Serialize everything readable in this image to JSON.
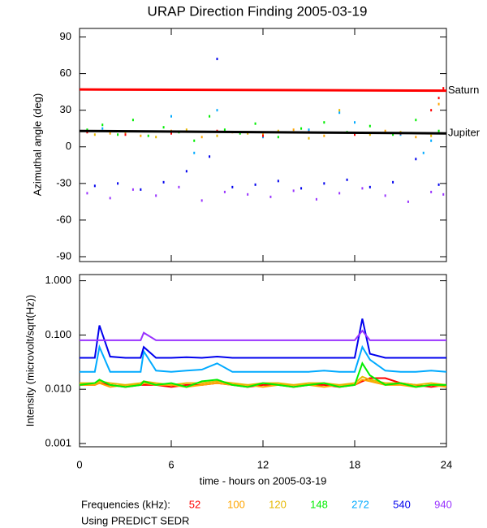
{
  "chart_data": [
    {
      "type": "scatter",
      "title": "URAP Direction Finding  2005-03-19",
      "ylabel": "Azimuthal angle (deg)",
      "xlim": [
        0,
        24
      ],
      "xticks": [
        0,
        6,
        12,
        18,
        24
      ],
      "ylim": [
        -94,
        97
      ],
      "yticks": [
        90,
        60,
        30,
        0,
        -30,
        -60,
        -90
      ],
      "reference_lines": [
        {
          "name": "Saturn",
          "color": "#ff0000",
          "x": [
            0,
            24
          ],
          "values": [
            47,
            46
          ]
        },
        {
          "name": "Jupiter",
          "color": "#000000",
          "x": [
            0,
            24
          ],
          "values": [
            13,
            11
          ]
        }
      ],
      "series": [
        {
          "color": "#9933ff",
          "x": [
            0.5,
            2,
            3.5,
            5,
            6.5,
            8,
            9.5,
            11,
            12.5,
            14,
            15.5,
            17,
            18.5,
            20,
            21.5,
            23,
            23.8
          ],
          "values": [
            -38,
            -42,
            -35,
            -40,
            -33,
            -44,
            -37,
            -39,
            -41,
            -36,
            -43,
            -38,
            -34,
            -40,
            -45,
            -37,
            -39
          ]
        },
        {
          "color": "#0000ee",
          "x": [
            1,
            2.5,
            4,
            5.5,
            7,
            8.5,
            9,
            10,
            11.5,
            13,
            14.5,
            16,
            17.5,
            19,
            20.5,
            22,
            23.5
          ],
          "values": [
            -32,
            -30,
            -35,
            -29,
            -20,
            -8,
            72,
            -33,
            -31,
            -28,
            -34,
            -30,
            -27,
            -33,
            -29,
            -10,
            -31
          ]
        },
        {
          "color": "#00aaff",
          "x": [
            1.5,
            3,
            6,
            7.5,
            9,
            12,
            15,
            17,
            18,
            21,
            22.5,
            23
          ],
          "values": [
            15,
            12,
            25,
            -5,
            30,
            8,
            14,
            28,
            20,
            10,
            -5,
            5
          ]
        },
        {
          "color": "#00ee00",
          "x": [
            0.5,
            1.5,
            2.5,
            3.5,
            4.5,
            5.5,
            6.5,
            7.5,
            8.5,
            9.5,
            10.5,
            11.5,
            13,
            14.5,
            16,
            17.5,
            19,
            20.5,
            22,
            23.5
          ],
          "values": [
            14,
            18,
            10,
            22,
            9,
            16,
            12,
            5,
            25,
            14,
            11,
            19,
            8,
            15,
            20,
            12,
            17,
            10,
            22,
            13
          ]
        },
        {
          "color": "#e6b800",
          "x": [
            1,
            3,
            5,
            7,
            9,
            11,
            13,
            15,
            17,
            19,
            21,
            23
          ],
          "values": [
            10,
            12,
            8,
            14,
            9,
            11,
            13,
            7,
            30,
            10,
            12,
            9
          ]
        },
        {
          "color": "#ffa500",
          "x": [
            2,
            4,
            6,
            8,
            10,
            12,
            14,
            16,
            18,
            20,
            22,
            23.5
          ],
          "values": [
            11,
            9,
            13,
            8,
            12,
            10,
            14,
            9,
            11,
            13,
            8,
            35
          ]
        },
        {
          "color": "#ff0000",
          "x": [
            0.5,
            3,
            6,
            9,
            12,
            15,
            18,
            21,
            23,
            23.5,
            23.8
          ],
          "values": [
            12,
            10,
            11,
            13,
            9,
            12,
            10,
            11,
            30,
            40,
            48
          ]
        }
      ]
    },
    {
      "type": "line",
      "ylabel": "Intensity (microvolt/sqrt(Hz))",
      "xlabel": "time - hours on 2005-03-19",
      "log_scale": true,
      "xlim": [
        0,
        24
      ],
      "xticks": [
        0,
        6,
        12,
        18,
        24
      ],
      "ylim": [
        0.00087,
        1.3
      ],
      "yticks": [
        {
          "value": 1,
          "label": "1.000"
        },
        {
          "value": 0.1,
          "label": "0.100"
        },
        {
          "value": 0.01,
          "label": "0.010"
        },
        {
          "value": 0.001,
          "label": "0.001"
        }
      ],
      "legend_title": "Frequencies (kHz):",
      "note": "Using PREDICT SEDR",
      "x": [
        0,
        1,
        1.3,
        2,
        3,
        4,
        4.2,
        5,
        6,
        7,
        8,
        9,
        10,
        11,
        12,
        13,
        14,
        15,
        16,
        17,
        18,
        18.5,
        19,
        20,
        21,
        22,
        23,
        24
      ],
      "series": [
        {
          "name": "52",
          "color": "#ff0000",
          "values": [
            0.012,
            0.012,
            0.013,
            0.012,
            0.011,
            0.012,
            0.012,
            0.012,
            0.011,
            0.012,
            0.012,
            0.013,
            0.012,
            0.011,
            0.012,
            0.012,
            0.011,
            0.012,
            0.012,
            0.011,
            0.012,
            0.014,
            0.016,
            0.016,
            0.013,
            0.012,
            0.011,
            0.012
          ]
        },
        {
          "name": "100",
          "color": "#ffa500",
          "values": [
            0.012,
            0.012,
            0.013,
            0.011,
            0.012,
            0.012,
            0.013,
            0.012,
            0.012,
            0.011,
            0.012,
            0.013,
            0.012,
            0.012,
            0.011,
            0.012,
            0.012,
            0.012,
            0.011,
            0.012,
            0.012,
            0.015,
            0.014,
            0.012,
            0.012,
            0.011,
            0.012,
            0.011
          ]
        },
        {
          "name": "120",
          "color": "#e6b800",
          "values": [
            0.013,
            0.013,
            0.014,
            0.013,
            0.012,
            0.013,
            0.014,
            0.013,
            0.012,
            0.013,
            0.013,
            0.014,
            0.013,
            0.012,
            0.013,
            0.013,
            0.012,
            0.013,
            0.013,
            0.012,
            0.013,
            0.017,
            0.015,
            0.013,
            0.013,
            0.012,
            0.013,
            0.012
          ]
        },
        {
          "name": "148",
          "color": "#00ee00",
          "values": [
            0.012,
            0.013,
            0.015,
            0.012,
            0.011,
            0.012,
            0.014,
            0.012,
            0.013,
            0.011,
            0.014,
            0.015,
            0.012,
            0.011,
            0.013,
            0.012,
            0.011,
            0.012,
            0.013,
            0.011,
            0.012,
            0.03,
            0.018,
            0.012,
            0.013,
            0.011,
            0.012,
            0.012
          ]
        },
        {
          "name": "272",
          "color": "#00aaff",
          "values": [
            0.021,
            0.021,
            0.06,
            0.021,
            0.021,
            0.021,
            0.05,
            0.022,
            0.021,
            0.022,
            0.023,
            0.03,
            0.021,
            0.021,
            0.021,
            0.021,
            0.021,
            0.021,
            0.022,
            0.021,
            0.021,
            0.06,
            0.035,
            0.022,
            0.021,
            0.021,
            0.022,
            0.021
          ]
        },
        {
          "name": "540",
          "color": "#0000ee",
          "values": [
            0.038,
            0.038,
            0.15,
            0.04,
            0.038,
            0.038,
            0.06,
            0.038,
            0.038,
            0.039,
            0.038,
            0.04,
            0.038,
            0.038,
            0.038,
            0.038,
            0.038,
            0.038,
            0.038,
            0.038,
            0.038,
            0.2,
            0.045,
            0.038,
            0.038,
            0.038,
            0.038,
            0.038
          ]
        },
        {
          "name": "940",
          "color": "#9933ff",
          "values": [
            0.08,
            0.08,
            0.08,
            0.08,
            0.08,
            0.08,
            0.11,
            0.08,
            0.08,
            0.08,
            0.08,
            0.08,
            0.08,
            0.08,
            0.08,
            0.08,
            0.08,
            0.08,
            0.08,
            0.08,
            0.08,
            0.12,
            0.08,
            0.08,
            0.08,
            0.08,
            0.08,
            0.08
          ]
        }
      ]
    }
  ]
}
